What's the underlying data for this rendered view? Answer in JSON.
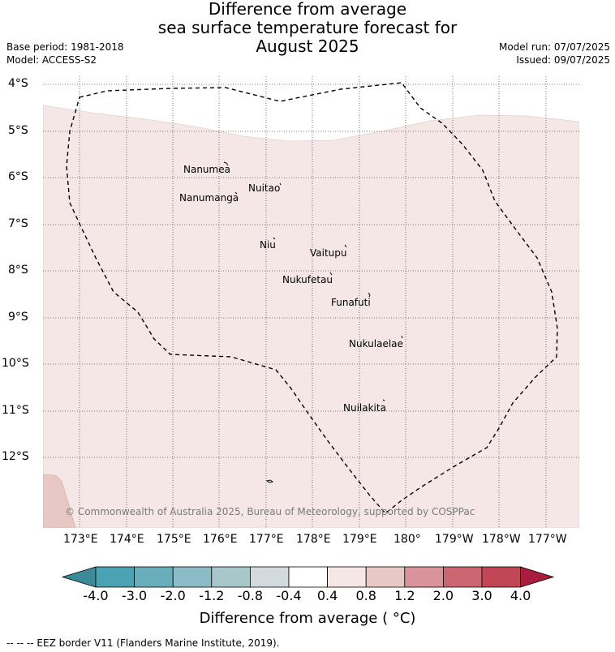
{
  "title": {
    "line1": "Difference from average",
    "line2": "sea surface temperature forecast for",
    "line3": "August 2025"
  },
  "meta": {
    "base_period": "Base period: 1981-2018",
    "model": "Model: ACCESS-S2",
    "model_run": "Model run: 07/07/2025",
    "issued": "Issued: 09/07/2025"
  },
  "map": {
    "lat_labels": [
      "4°S",
      "5°S",
      "6°S",
      "7°S",
      "8°S",
      "9°S",
      "10°S",
      "11°S",
      "12°S"
    ],
    "lon_labels": [
      "173°E",
      "174°E",
      "175°E",
      "176°E",
      "177°E",
      "178°E",
      "179°E",
      "180°",
      "179°W",
      "178°W",
      "177°W"
    ],
    "islands": [
      "Nanumea",
      "Nuitao",
      "Nanumanga",
      "Niu",
      "Vaitupu",
      "Nukufetau",
      "Funafuti",
      "Nukulaelae",
      "Nuilakita"
    ],
    "copyright": "© Commonwealth of Australia 2025, Bureau of Meteorology, supported by COSPPac",
    "colors": {
      "anomaly_0_4_to_0_8": "#f4e7e6",
      "anomaly_0_8_to_1_2": "#e8c8c4",
      "eez_border": "#000000",
      "gridlines": "#555555"
    }
  },
  "colorbar": {
    "labels": [
      "-4.0",
      "-3.0",
      "-2.0",
      "-1.2",
      "-0.8",
      "-0.4",
      "0.4",
      "0.8",
      "1.2",
      "2.0",
      "3.0",
      "4.0"
    ],
    "colors": [
      "#3a8a99",
      "#4aa3b3",
      "#6aaebb",
      "#8bbcc6",
      "#a7c7cb",
      "#d1dadd",
      "#ffffff",
      "#f4e7e6",
      "#e8c8c4",
      "#d9939a",
      "#cc6670",
      "#c14656",
      "#a81d3d"
    ],
    "title": "Difference from average ( °C)"
  },
  "footer": "--  --  -- EEZ border V11 (Flanders Marine Institute, 2019)."
}
